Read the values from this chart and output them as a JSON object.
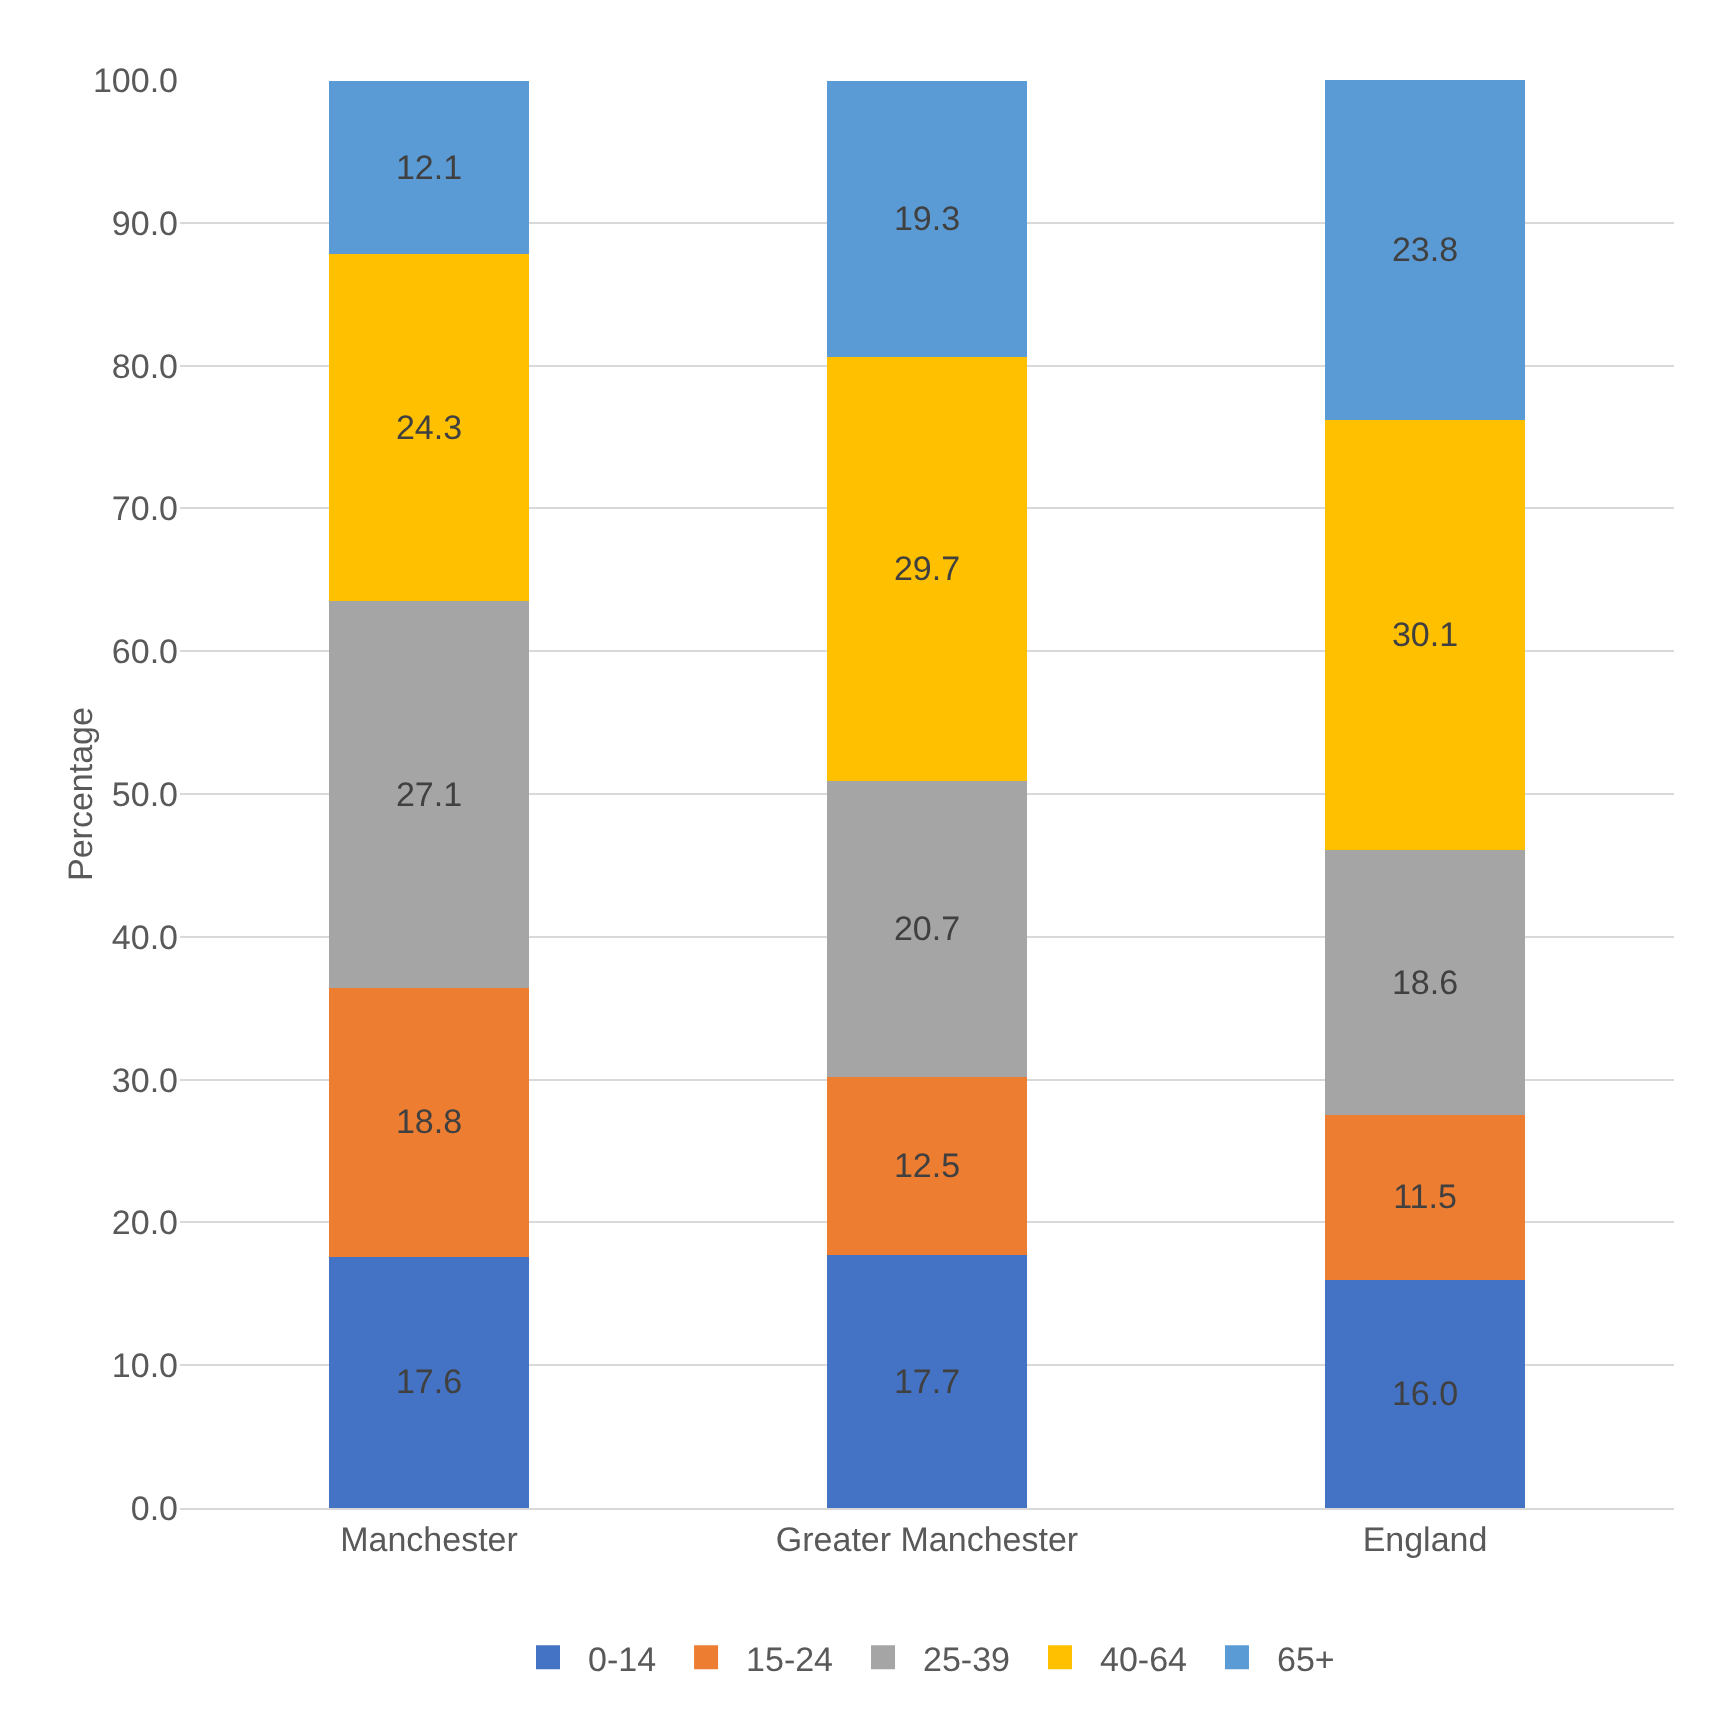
{
  "chart_data": {
    "type": "bar",
    "stacked": true,
    "ylabel": "Percentage",
    "categories": [
      "Manchester",
      "Greater Manchester",
      "England"
    ],
    "series": [
      {
        "name": "0-14",
        "color": "#4472c4",
        "values": [
          17.6,
          17.7,
          16.0
        ],
        "value_labels": [
          "17.6",
          "17.7",
          "16.0"
        ]
      },
      {
        "name": "15-24",
        "color": "#ed7d31",
        "values": [
          18.8,
          12.5,
          11.5
        ],
        "value_labels": [
          "18.8",
          "12.5",
          "11.5"
        ]
      },
      {
        "name": "25-39",
        "color": "#a5a5a5",
        "values": [
          27.1,
          20.7,
          18.6
        ],
        "value_labels": [
          "27.1",
          "20.7",
          "18.6"
        ]
      },
      {
        "name": "40-64",
        "color": "#ffc000",
        "values": [
          24.3,
          29.7,
          30.1
        ],
        "value_labels": [
          "24.3",
          "29.7",
          "30.1"
        ]
      },
      {
        "name": "65+",
        "color": "#5b9bd5",
        "values": [
          12.1,
          19.3,
          23.8
        ],
        "value_labels": [
          "12.1",
          "19.3",
          "23.8"
        ]
      }
    ],
    "ylim": [
      0,
      100
    ],
    "yticks": [
      {
        "value": 0,
        "label": "0.0"
      },
      {
        "value": 10,
        "label": "10.0"
      },
      {
        "value": 20,
        "label": "20.0"
      },
      {
        "value": 30,
        "label": "30.0"
      },
      {
        "value": 40,
        "label": "40.0"
      },
      {
        "value": 50,
        "label": "50.0"
      },
      {
        "value": 60,
        "label": "60.0"
      },
      {
        "value": 70,
        "label": "70.0"
      },
      {
        "value": 80,
        "label": "80.0"
      },
      {
        "value": 90,
        "label": "90.0"
      },
      {
        "value": 100,
        "label": "100.0"
      }
    ],
    "grid": "y",
    "legend": "bottom"
  }
}
